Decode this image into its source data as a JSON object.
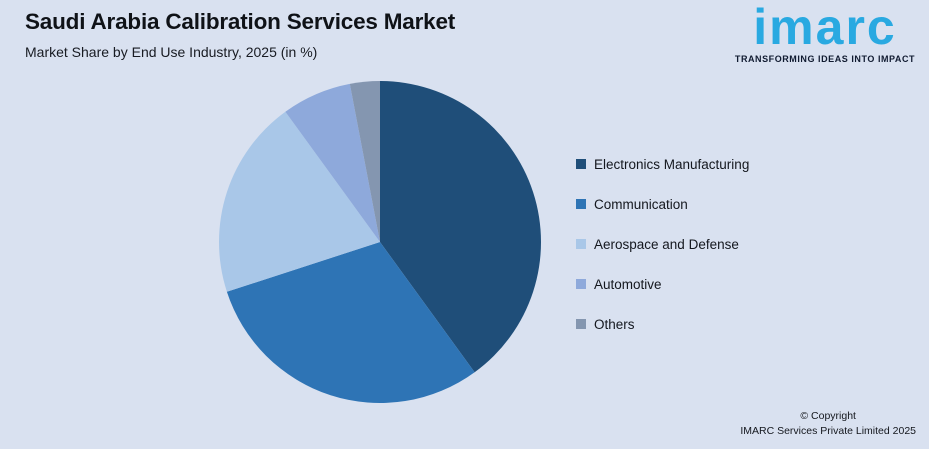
{
  "header": {
    "title": "Saudi Arabia Calibration Services Market",
    "subtitle": "Market Share by End Use Industry, 2025 (in %)"
  },
  "logo": {
    "wordmark": "imarc",
    "tagline": "TRANSFORMING IDEAS INTO IMPACT",
    "brand_color": "#29a9e1",
    "tagline_color": "#101a30"
  },
  "chart_data": {
    "type": "pie",
    "title": "Saudi Arabia Calibration Services Market",
    "subtitle": "Market Share by End Use Industry, 2025 (in %)",
    "unit": "%",
    "start_angle_deg": 0,
    "direction": "clockwise",
    "legend_position": "right",
    "segments": [
      {
        "label": "Electronics Manufacturing",
        "value": 40,
        "color": "#1f4e79"
      },
      {
        "label": "Communication",
        "value": 30,
        "color": "#2e74b5"
      },
      {
        "label": "Aerospace and Defense",
        "value": 20,
        "color": "#a9c7e8"
      },
      {
        "label": "Automotive",
        "value": 7,
        "color": "#8ea9db"
      },
      {
        "label": "Others",
        "value": 3,
        "color": "#8496b0"
      }
    ]
  },
  "footer": {
    "copyright_line1": "© Copyright",
    "copyright_line2": "IMARC Services Private Limited 2025"
  }
}
